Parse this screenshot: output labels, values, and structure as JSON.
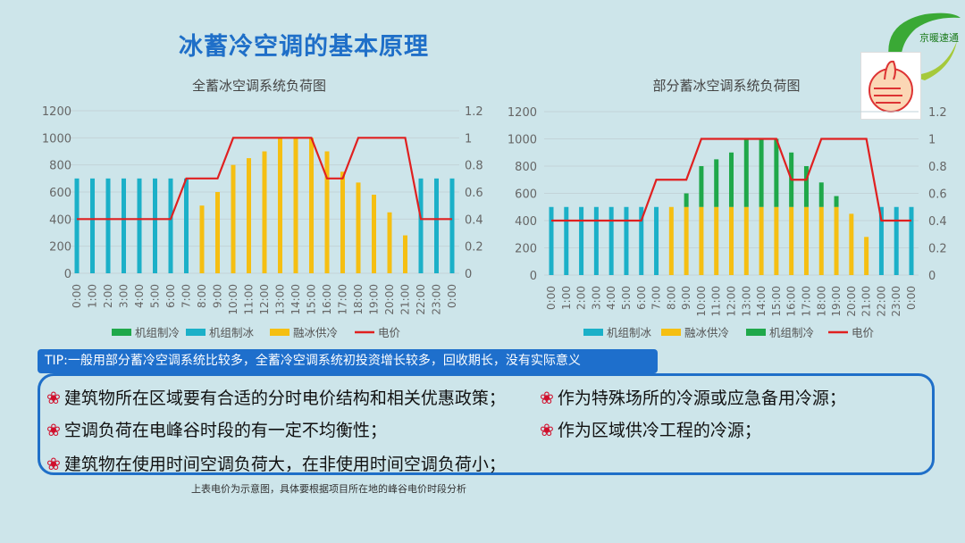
{
  "title": "冰蓄冷空调的基本原理",
  "logo": {
    "text": "京暖速通"
  },
  "colors": {
    "green": "#1fa84a",
    "blue": "#1bb0c8",
    "yellow": "#f5bf12",
    "red": "#e02020",
    "title": "#1f6fc8"
  },
  "chart_data": [
    {
      "type": "bar",
      "title": "全蓄冰空调系统负荷图",
      "categories": [
        "0:00",
        "1:00",
        "2:00",
        "3:00",
        "4:00",
        "5:00",
        "6:00",
        "7:00",
        "8:00",
        "9:00",
        "10:00",
        "11:00",
        "12:00",
        "13:00",
        "14:00",
        "15:00",
        "16:00",
        "17:00",
        "18:00",
        "19:00",
        "20:00",
        "21:00",
        "22:00",
        "23:00",
        "0:00"
      ],
      "ylim": [
        0,
        1200
      ],
      "y_ticks": [
        "0",
        "200",
        "400",
        "600",
        "800",
        "1000",
        "1200"
      ],
      "y2lim": [
        0,
        1.2
      ],
      "y2_ticks": [
        "0",
        "0.2",
        "0.4",
        "0.6",
        "0.8",
        "1",
        "1.2"
      ],
      "legend": [
        "机组制冷",
        "机组制冰",
        "融冰供冷",
        "电价"
      ],
      "series": [
        {
          "name": "机组制冷",
          "color": "green",
          "values": [
            0,
            0,
            0,
            0,
            0,
            0,
            0,
            0,
            0,
            0,
            0,
            0,
            0,
            0,
            0,
            0,
            0,
            0,
            0,
            0,
            0,
            0,
            0,
            0,
            0
          ]
        },
        {
          "name": "机组制冰",
          "color": "blue",
          "values": [
            700,
            700,
            700,
            700,
            700,
            700,
            700,
            700,
            0,
            0,
            0,
            0,
            0,
            0,
            0,
            0,
            0,
            0,
            0,
            0,
            0,
            0,
            700,
            700,
            700
          ]
        },
        {
          "name": "融冰供冷",
          "color": "yellow",
          "values": [
            0,
            0,
            0,
            0,
            0,
            0,
            0,
            0,
            500,
            600,
            800,
            850,
            900,
            1000,
            1000,
            1000,
            900,
            750,
            670,
            580,
            450,
            280,
            0,
            0,
            0
          ]
        }
      ],
      "line": {
        "name": "电价",
        "color": "red",
        "values": [
          0.4,
          0.4,
          0.4,
          0.4,
          0.4,
          0.4,
          0.4,
          0.7,
          0.7,
          0.7,
          1,
          1,
          1,
          1,
          1,
          1,
          0.7,
          0.7,
          1,
          1,
          1,
          1,
          0.4,
          0.4,
          0.4
        ]
      }
    },
    {
      "type": "bar",
      "title": "部分蓄冰空调系统负荷图",
      "categories": [
        "0:00",
        "1:00",
        "2:00",
        "3:00",
        "4:00",
        "5:00",
        "6:00",
        "7:00",
        "8:00",
        "9:00",
        "10:00",
        "11:00",
        "12:00",
        "13:00",
        "14:00",
        "15:00",
        "16:00",
        "17:00",
        "18:00",
        "19:00",
        "20:00",
        "21:00",
        "22:00",
        "23:00",
        "0:00"
      ],
      "ylim": [
        0,
        1200
      ],
      "y_ticks": [
        "0",
        "200",
        "400",
        "600",
        "800",
        "1000",
        "1200"
      ],
      "y2lim": [
        0,
        1.2
      ],
      "y2_ticks": [
        "0",
        "0.2",
        "0.4",
        "0.6",
        "0.8",
        "1",
        "1.2"
      ],
      "legend": [
        "机组制冰",
        "融冰供冷",
        "机组制冷",
        "电价"
      ],
      "series": [
        {
          "name": "机组制冰",
          "color": "blue",
          "values": [
            500,
            500,
            500,
            500,
            500,
            500,
            500,
            500,
            0,
            0,
            0,
            0,
            0,
            0,
            0,
            0,
            0,
            0,
            0,
            0,
            0,
            0,
            500,
            500,
            500
          ]
        },
        {
          "name": "融冰供冷",
          "color": "yellow",
          "values": [
            0,
            0,
            0,
            0,
            0,
            0,
            0,
            0,
            500,
            500,
            500,
            500,
            500,
            500,
            500,
            500,
            500,
            500,
            500,
            500,
            450,
            280,
            0,
            0,
            0
          ]
        },
        {
          "name": "机组制冷",
          "color": "green",
          "values": [
            0,
            0,
            0,
            0,
            0,
            0,
            0,
            0,
            0,
            100,
            300,
            350,
            400,
            500,
            500,
            500,
            400,
            300,
            180,
            80,
            0,
            0,
            0,
            0,
            0
          ]
        }
      ],
      "line": {
        "name": "电价",
        "color": "red",
        "values": [
          0.4,
          0.4,
          0.4,
          0.4,
          0.4,
          0.4,
          0.4,
          0.7,
          0.7,
          0.7,
          1,
          1,
          1,
          1,
          1,
          1,
          0.7,
          0.7,
          1,
          1,
          1,
          1,
          0.4,
          0.4,
          0.4
        ]
      }
    }
  ],
  "tip": "TIP:一般用部分蓄冷空调系统比较多，全蓄冷空调系统初投资增长较多，回收期长，没有实际意义",
  "bullets": {
    "left": [
      "建筑物所在区域要有合适的分时电价结构和相关优惠政策；",
      "空调负荷在电峰谷时段的有一定不均衡性；",
      "建筑物在使用时间空调负荷大，在非使用时间空调负荷小；"
    ],
    "right": [
      "作为特殊场所的冷源或应急备用冷源；",
      "作为区域供冷工程的冷源；"
    ]
  },
  "bullet_symbol": "❀",
  "note": "上表电价为示意图，具体要根据项目所在地的峰谷电价时段分析"
}
